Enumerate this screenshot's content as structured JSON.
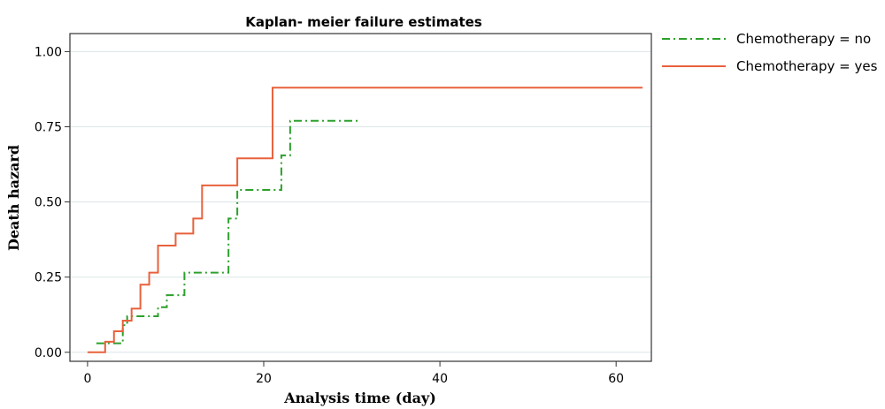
{
  "chart_data": {
    "type": "line",
    "step": true,
    "title": "Kaplan- meier failure estimates",
    "xlabel": "Analysis time (day)",
    "ylabel": "Death hazard",
    "xlim": [
      -2,
      64
    ],
    "ylim": [
      -0.03,
      1.06
    ],
    "xticks": [
      0,
      20,
      40,
      60
    ],
    "xtick_labels": [
      "0",
      "20",
      "40",
      "60"
    ],
    "yticks": [
      0,
      0.25,
      0.5,
      0.75,
      1.0
    ],
    "ytick_labels": [
      "0.00",
      "0.25",
      "0.50",
      "0.75",
      "1.00"
    ],
    "grid": "horizontal",
    "legend_position": "right-outside-top",
    "series": [
      {
        "name": "Chemotherapy = no",
        "color": "#2ca02c",
        "style": "dash-dot",
        "x": [
          1,
          4,
          4.5,
          8,
          9,
          11,
          16,
          17,
          22,
          23,
          31
        ],
        "y": [
          0.03,
          0.09,
          0.12,
          0.15,
          0.19,
          0.265,
          0.445,
          0.54,
          0.655,
          0.77,
          0.77
        ]
      },
      {
        "name": "Chemotherapy = yes",
        "color": "#e8613c",
        "style": "solid",
        "x": [
          0,
          2,
          3,
          4,
          5,
          6,
          7,
          8,
          10,
          12,
          13,
          17,
          21,
          63
        ],
        "y": [
          0.0,
          0.035,
          0.07,
          0.105,
          0.145,
          0.225,
          0.265,
          0.355,
          0.395,
          0.445,
          0.555,
          0.645,
          0.88,
          0.88
        ]
      }
    ]
  }
}
